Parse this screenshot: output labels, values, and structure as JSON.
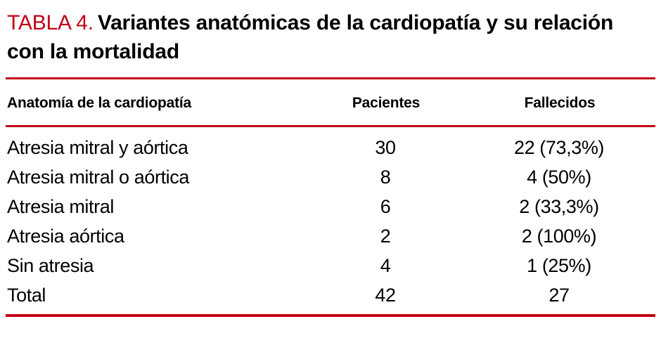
{
  "title": {
    "label": "TABLA 4.",
    "text": "Variantes anatómicas de la cardiopatía y su relación con la mortalidad"
  },
  "colors": {
    "accent_red": "#c10018",
    "text_color": "#000000",
    "page_bg": "#ffffff"
  },
  "table": {
    "columns": [
      "Anatomía de la cardiopatía",
      "Pacientes",
      "Fallecidos"
    ],
    "rows": [
      {
        "anatomy": "Atresia mitral y aórtica",
        "pacientes": "30",
        "fallecidos": "22 (73,3%)"
      },
      {
        "anatomy": "Atresia mitral o aórtica",
        "pacientes": "8",
        "fallecidos": "4 (50%)"
      },
      {
        "anatomy": "Atresia mitral",
        "pacientes": "6",
        "fallecidos": "2 (33,3%)"
      },
      {
        "anatomy": "Atresia aórtica",
        "pacientes": "2",
        "fallecidos": "2 (100%)"
      },
      {
        "anatomy": "Sin atresia",
        "pacientes": "4",
        "fallecidos": "1 (25%)"
      },
      {
        "anatomy": "Total",
        "pacientes": "42",
        "fallecidos": "27"
      }
    ]
  }
}
